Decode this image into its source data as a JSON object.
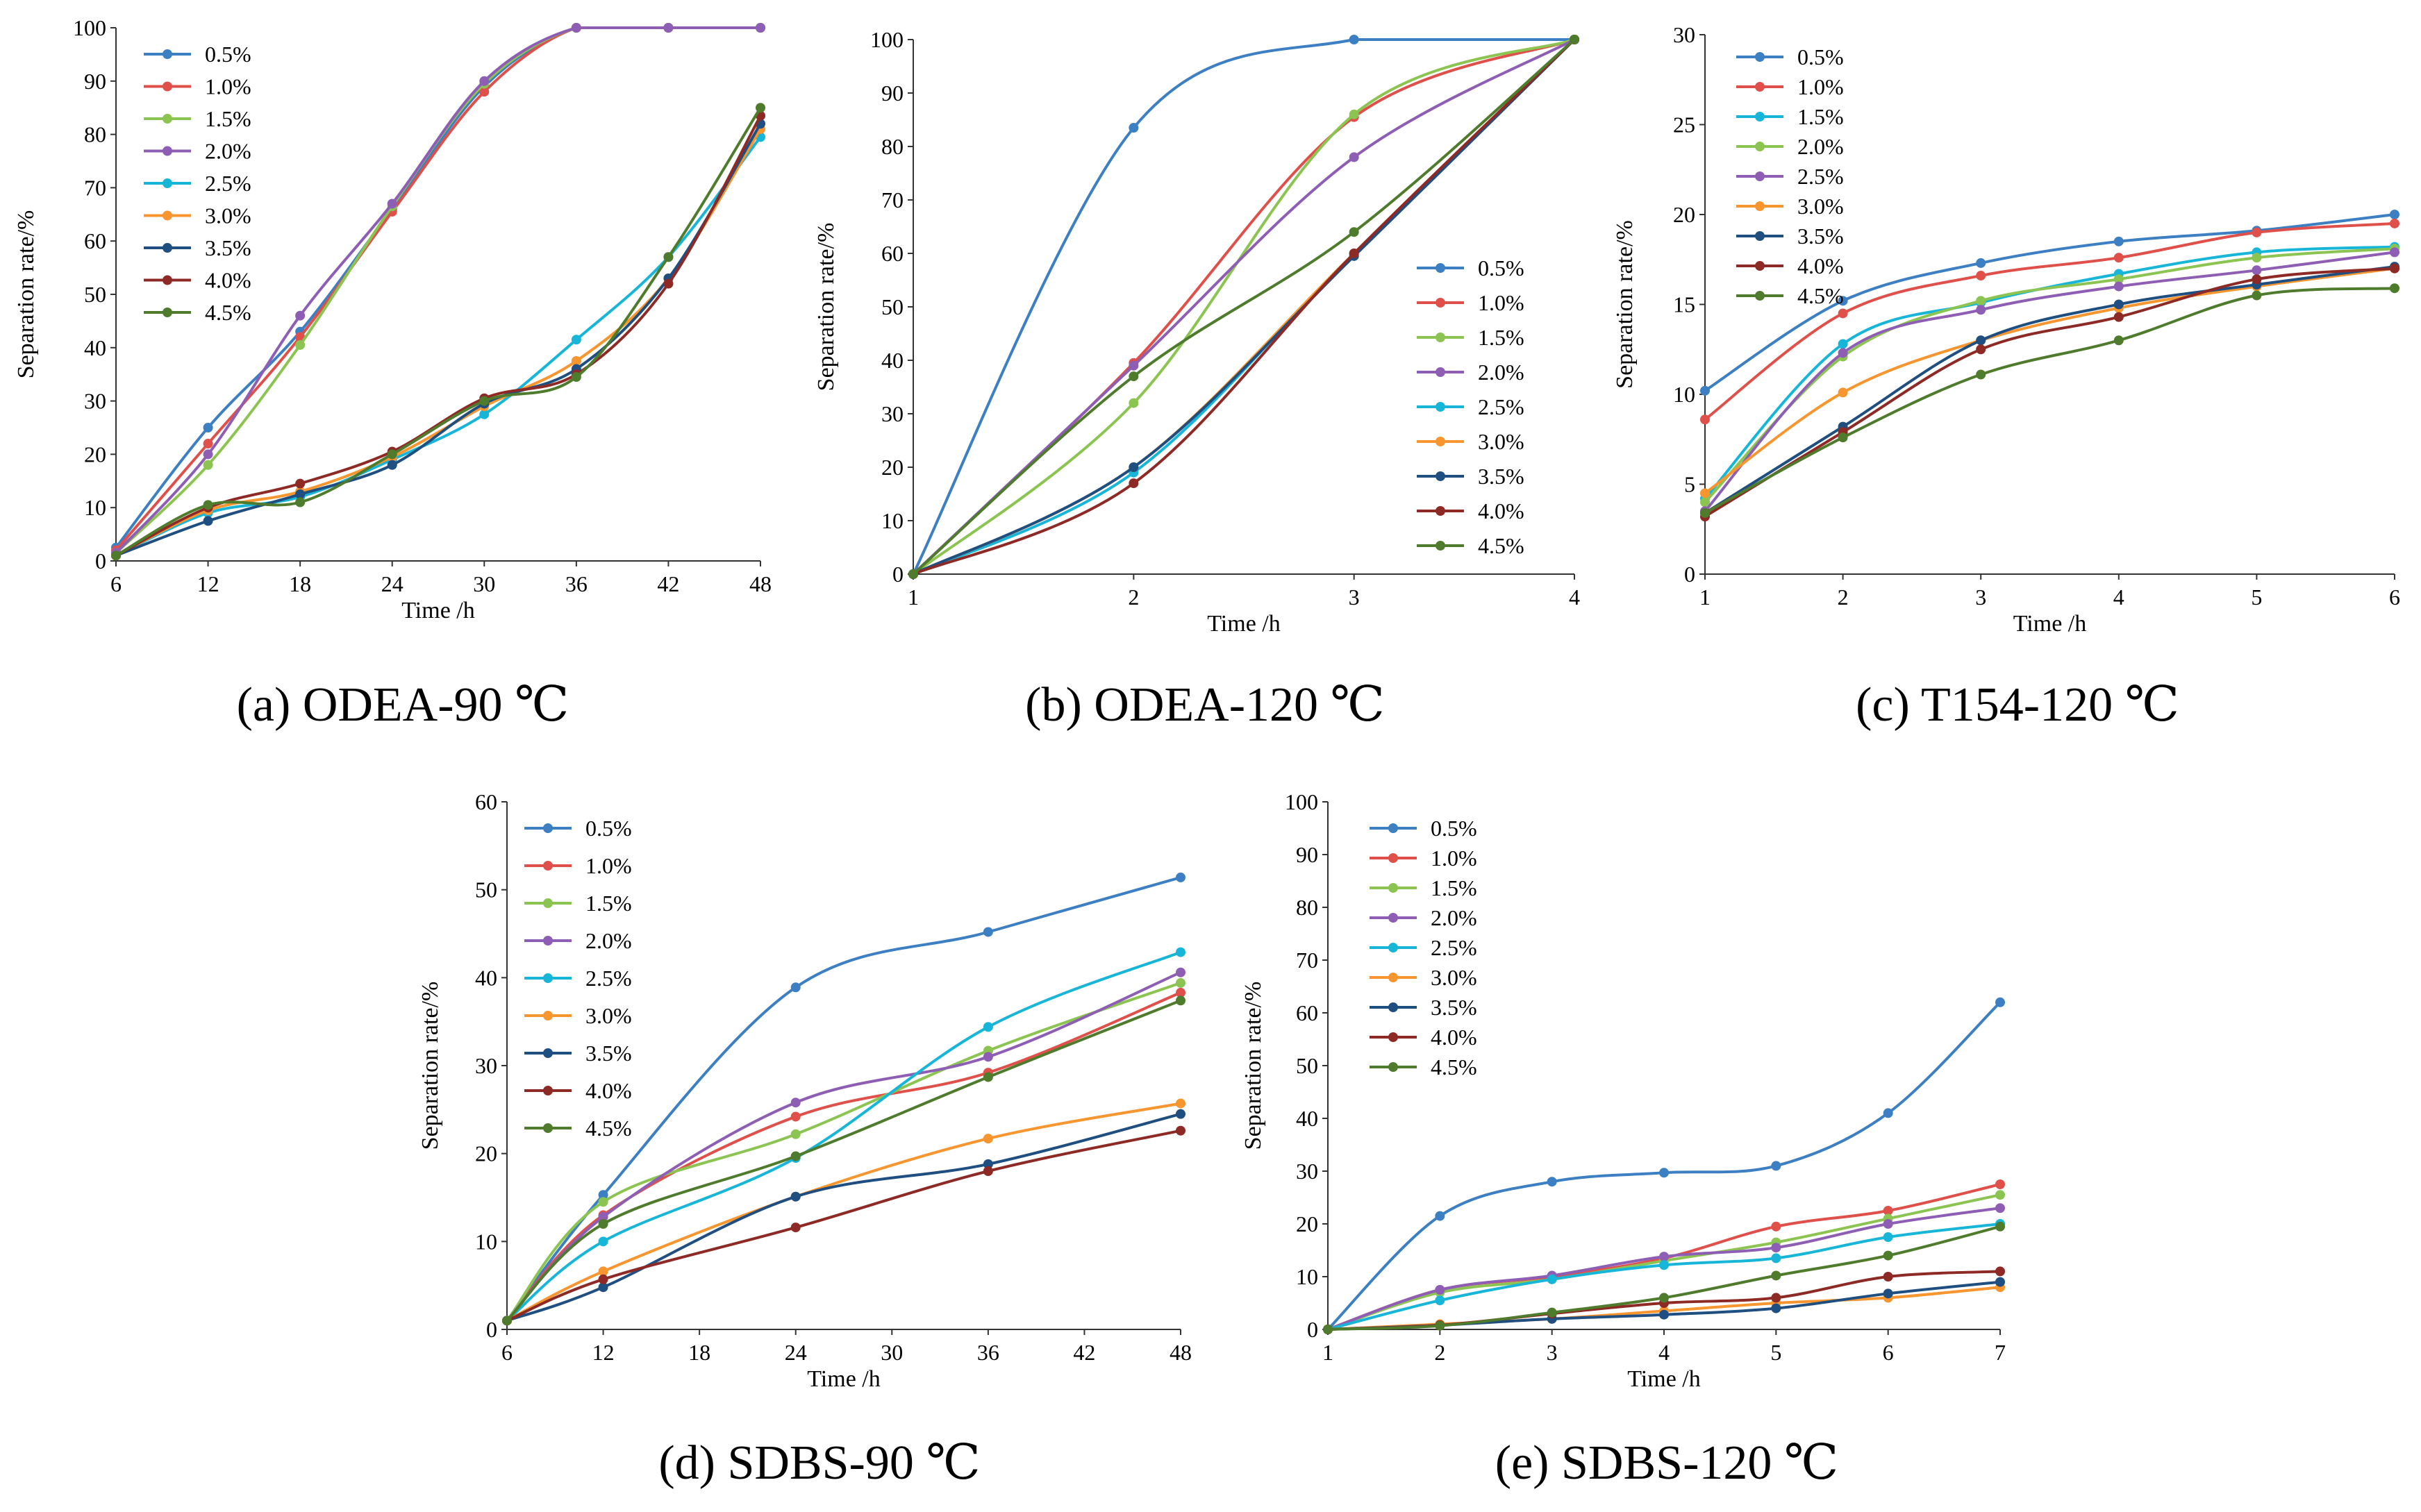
{
  "chart_data": [
    {
      "id": "a",
      "type": "line",
      "caption": "(a) ODEA-90 ℃",
      "xlabel": "Time /h",
      "ylabel": "Separation rate/%",
      "x": [
        6,
        12,
        18,
        24,
        30,
        36,
        42,
        48
      ],
      "xticks": [
        "6",
        "12",
        "18",
        "24",
        "30",
        "36",
        "42",
        "48"
      ],
      "ylim": [
        0,
        100
      ],
      "yticks": [
        "0",
        "10",
        "20",
        "30",
        "40",
        "50",
        "60",
        "70",
        "80",
        "90",
        "100"
      ],
      "legend_position": "top-left",
      "series": [
        {
          "name": "0.5%",
          "color": "#3c7fc2",
          "values": [
            2.5,
            25,
            43,
            66,
            89,
            100,
            100,
            100
          ]
        },
        {
          "name": "1.0%",
          "color": "#e0504a",
          "values": [
            2,
            22,
            42,
            65.5,
            88,
            100,
            100,
            100
          ]
        },
        {
          "name": "1.5%",
          "color": "#8cc451",
          "values": [
            1.5,
            18,
            40.5,
            66.5,
            89.5,
            100,
            100,
            100
          ]
        },
        {
          "name": "2.0%",
          "color": "#8e5eb5",
          "values": [
            1.5,
            20,
            46,
            67,
            90,
            100,
            100,
            100
          ]
        },
        {
          "name": "2.5%",
          "color": "#17b6d8",
          "values": [
            1,
            9,
            12,
            19,
            27.5,
            41.5,
            57,
            79.5
          ]
        },
        {
          "name": "3.0%",
          "color": "#f7952f",
          "values": [
            1,
            9.5,
            13,
            19.5,
            29,
            37.5,
            53,
            81
          ]
        },
        {
          "name": "3.5%",
          "color": "#1f4e80",
          "values": [
            1,
            7.5,
            12.5,
            18,
            29.5,
            36,
            53,
            82
          ]
        },
        {
          "name": "4.0%",
          "color": "#8e2a26",
          "values": [
            1,
            10,
            14.5,
            20.5,
            30.5,
            35,
            52,
            83.5
          ]
        },
        {
          "name": "4.5%",
          "color": "#4f7b2c",
          "values": [
            1,
            10.5,
            11,
            20,
            30,
            34.5,
            57,
            85
          ]
        }
      ]
    },
    {
      "id": "b",
      "type": "line",
      "caption": "(b) ODEA-120 ℃",
      "xlabel": "Time /h",
      "ylabel": "Separation rate/%",
      "x": [
        1,
        2,
        3,
        4
      ],
      "xticks": [
        "1",
        "2",
        "3",
        "4"
      ],
      "ylim": [
        0,
        100
      ],
      "yticks": [
        "0",
        "10",
        "20",
        "30",
        "40",
        "50",
        "60",
        "70",
        "80",
        "90",
        "100"
      ],
      "legend_position": "bottom-right",
      "series": [
        {
          "name": "0.5%",
          "color": "#3c7fc2",
          "values": [
            0,
            83.5,
            100,
            100
          ]
        },
        {
          "name": "1.0%",
          "color": "#e0504a",
          "values": [
            0,
            39.5,
            85.5,
            100
          ]
        },
        {
          "name": "1.5%",
          "color": "#8cc451",
          "values": [
            0,
            32,
            86,
            100
          ]
        },
        {
          "name": "2.0%",
          "color": "#8e5eb5",
          "values": [
            0,
            39,
            78,
            100
          ]
        },
        {
          "name": "2.5%",
          "color": "#17b6d8",
          "values": [
            0,
            19,
            60,
            100
          ]
        },
        {
          "name": "3.0%",
          "color": "#f7952f",
          "values": [
            0,
            20,
            60,
            100
          ]
        },
        {
          "name": "3.5%",
          "color": "#1f4e80",
          "values": [
            0,
            20,
            59.5,
            100
          ]
        },
        {
          "name": "4.0%",
          "color": "#8e2a26",
          "values": [
            0,
            17,
            60,
            100
          ]
        },
        {
          "name": "4.5%",
          "color": "#4f7b2c",
          "values": [
            0,
            37,
            64,
            100
          ]
        }
      ]
    },
    {
      "id": "c",
      "type": "line",
      "caption": "(c) T154-120 ℃",
      "xlabel": "Time /h",
      "ylabel": "Separation rate/%",
      "x": [
        1,
        2,
        3,
        4,
        5,
        6
      ],
      "xticks": [
        "1",
        "2",
        "3",
        "4",
        "5",
        "6"
      ],
      "ylim": [
        0,
        30
      ],
      "yticks": [
        "0",
        "5",
        "10",
        "15",
        "20",
        "25",
        "30"
      ],
      "legend_position": "top-left",
      "series": [
        {
          "name": "0.5%",
          "color": "#3c7fc2",
          "values": [
            10.2,
            15.2,
            17.3,
            18.5,
            19.1,
            20
          ]
        },
        {
          "name": "1.0%",
          "color": "#e0504a",
          "values": [
            8.6,
            14.5,
            16.6,
            17.6,
            19,
            19.5
          ]
        },
        {
          "name": "1.5%",
          "color": "#17b6d8",
          "values": [
            4.2,
            12.8,
            15.1,
            16.7,
            17.9,
            18.2
          ]
        },
        {
          "name": "2.0%",
          "color": "#8cc451",
          "values": [
            4,
            12.1,
            15.2,
            16.4,
            17.6,
            18.1
          ]
        },
        {
          "name": "2.5%",
          "color": "#8e5eb5",
          "values": [
            3.5,
            12.3,
            14.7,
            16,
            16.9,
            17.9
          ]
        },
        {
          "name": "3.0%",
          "color": "#f7952f",
          "values": [
            4.5,
            10.1,
            13,
            14.8,
            16,
            17
          ]
        },
        {
          "name": "3.5%",
          "color": "#1f4e80",
          "values": [
            3.4,
            8.2,
            13,
            15,
            16.1,
            17.1
          ]
        },
        {
          "name": "4.0%",
          "color": "#8e2a26",
          "values": [
            3.2,
            7.9,
            12.5,
            14.3,
            16.4,
            17
          ]
        },
        {
          "name": "4.5%",
          "color": "#4f7b2c",
          "values": [
            3.4,
            7.6,
            11.1,
            13,
            15.5,
            15.9
          ]
        }
      ]
    },
    {
      "id": "d",
      "type": "line",
      "caption": "(d) SDBS-90 ℃",
      "xlabel": "Time /h",
      "ylabel": "Separation rate/%",
      "x": [
        6,
        12,
        24,
        36,
        48
      ],
      "xticks": [
        "6",
        "12",
        "18",
        "24",
        "30",
        "36",
        "42",
        "48"
      ],
      "xtick_values": [
        6,
        12,
        18,
        24,
        30,
        36,
        42,
        48
      ],
      "ylim": [
        0,
        60
      ],
      "yticks": [
        "0",
        "10",
        "20",
        "30",
        "40",
        "50",
        "60"
      ],
      "legend_position": "top-left",
      "series": [
        {
          "name": "0.5%",
          "color": "#3c7fc2",
          "values": [
            1,
            15.3,
            38.9,
            45.2,
            51.4
          ]
        },
        {
          "name": "1.0%",
          "color": "#e0504a",
          "values": [
            1,
            13,
            24.2,
            29.2,
            38.3
          ]
        },
        {
          "name": "1.5%",
          "color": "#8cc451",
          "values": [
            1,
            14.5,
            22.2,
            31.7,
            39.4
          ]
        },
        {
          "name": "2.0%",
          "color": "#8e5eb5",
          "values": [
            1,
            12.8,
            25.8,
            31,
            40.6
          ]
        },
        {
          "name": "2.5%",
          "color": "#17b6d8",
          "values": [
            1,
            10,
            19.5,
            34.4,
            42.9
          ]
        },
        {
          "name": "3.0%",
          "color": "#f7952f",
          "values": [
            1,
            6.6,
            15.1,
            21.7,
            25.7
          ]
        },
        {
          "name": "3.5%",
          "color": "#1f4e80",
          "values": [
            1,
            4.8,
            15.1,
            18.8,
            24.5
          ]
        },
        {
          "name": "4.0%",
          "color": "#8e2a26",
          "values": [
            1,
            5.7,
            11.6,
            18,
            22.6
          ]
        },
        {
          "name": "4.5%",
          "color": "#4f7b2c",
          "values": [
            1,
            12,
            19.7,
            28.7,
            37.4
          ]
        }
      ]
    },
    {
      "id": "e",
      "type": "line",
      "caption": "(e) SDBS-120 ℃",
      "xlabel": "Time /h",
      "ylabel": "Separation rate/%",
      "x": [
        1,
        2,
        3,
        4,
        5,
        6,
        7
      ],
      "xticks": [
        "1",
        "2",
        "3",
        "4",
        "5",
        "6",
        "7"
      ],
      "ylim": [
        0,
        100
      ],
      "yticks": [
        "0",
        "10",
        "20",
        "30",
        "40",
        "50",
        "60",
        "70",
        "80",
        "90",
        "100"
      ],
      "legend_position": "top-left",
      "series": [
        {
          "name": "0.5%",
          "color": "#3c7fc2",
          "values": [
            0,
            21.5,
            28,
            29.7,
            31,
            41,
            62
          ]
        },
        {
          "name": "1.0%",
          "color": "#e0504a",
          "values": [
            0,
            7.5,
            10,
            13.5,
            19.5,
            22.5,
            27.5
          ]
        },
        {
          "name": "1.5%",
          "color": "#8cc451",
          "values": [
            0,
            7,
            9.5,
            13,
            16.5,
            21,
            25.5
          ]
        },
        {
          "name": "2.0%",
          "color": "#8e5eb5",
          "values": [
            0,
            7.5,
            10.2,
            13.8,
            15.5,
            20,
            23
          ]
        },
        {
          "name": "2.5%",
          "color": "#17b6d8",
          "values": [
            0,
            5.5,
            9.5,
            12.2,
            13.5,
            17.5,
            20
          ]
        },
        {
          "name": "3.0%",
          "color": "#f7952f",
          "values": [
            0,
            1,
            2,
            3.5,
            5,
            6,
            8
          ]
        },
        {
          "name": "3.5%",
          "color": "#1f4e80",
          "values": [
            0,
            0.8,
            2,
            2.8,
            4,
            6.8,
            9
          ]
        },
        {
          "name": "4.0%",
          "color": "#8e2a26",
          "values": [
            0,
            0.8,
            3,
            5,
            6,
            10,
            11
          ]
        },
        {
          "name": "4.5%",
          "color": "#4f7b2c",
          "values": [
            0,
            0.7,
            3.2,
            6,
            10.2,
            14,
            19.5
          ]
        }
      ]
    }
  ]
}
